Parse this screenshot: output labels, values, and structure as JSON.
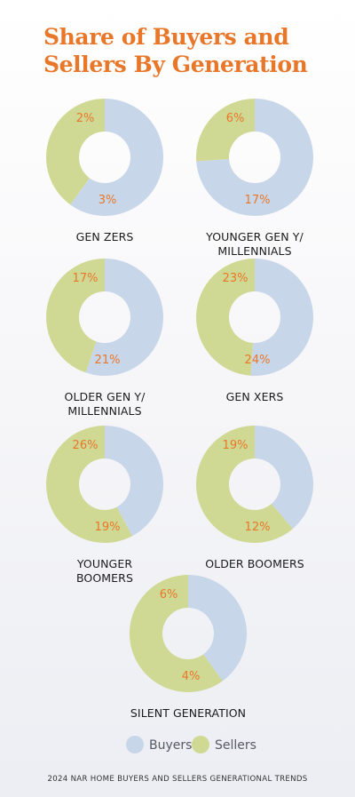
{
  "title_lines": [
    "Share of Buyers and",
    "Sellers By Generation"
  ],
  "footer": "2024 NAR HOME BUYERS AND SELLERS GENERATIONAL TRENDS",
  "colors": {
    "buyers": "#c8d6ea",
    "sellers": "#cfd994",
    "accent": "#e9772a"
  },
  "chart_data": {
    "type": "pie",
    "subtype": "donut",
    "legend": {
      "placement": "bottom-center",
      "entries": [
        "Buyers",
        "Sellers"
      ]
    },
    "series": [
      {
        "name": "Buyers",
        "values": [
          3,
          17,
          21,
          24,
          19,
          12,
          4
        ]
      },
      {
        "name": "Sellers",
        "values": [
          2,
          6,
          17,
          23,
          26,
          19,
          6
        ]
      }
    ],
    "categories": [
      {
        "label_lines": [
          "GEN ZERS"
        ],
        "buyers": 3,
        "sellers": 2
      },
      {
        "label_lines": [
          "YOUNGER GEN Y/",
          "MILLENNIALS"
        ],
        "buyers": 17,
        "sellers": 6
      },
      {
        "label_lines": [
          "OLDER GEN Y/",
          "MILLENNIALS"
        ],
        "buyers": 21,
        "sellers": 17
      },
      {
        "label_lines": [
          "GEN XERS"
        ],
        "buyers": 24,
        "sellers": 23
      },
      {
        "label_lines": [
          "YOUNGER",
          "BOOMERS"
        ],
        "buyers": 19,
        "sellers": 26
      },
      {
        "label_lines": [
          "OLDER BOOMERS"
        ],
        "buyers": 12,
        "sellers": 19
      },
      {
        "label_lines": [
          "SILENT GENERATION"
        ],
        "buyers": 4,
        "sellers": 6
      }
    ]
  }
}
